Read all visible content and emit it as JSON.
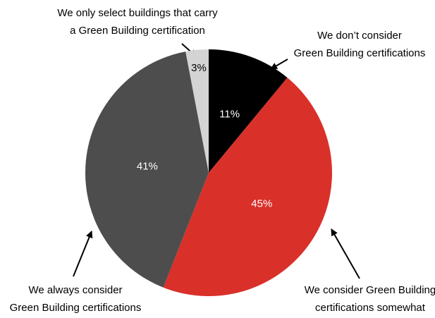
{
  "chart_data": {
    "type": "pie",
    "categories": [
      "We don’t consider\nGreen Building certifications",
      "We consider Green Building\ncertifications somewhat",
      "We always consider\nGreen Building certifications",
      "We only select buildings that carry\na Green Building certification"
    ],
    "values": [
      11,
      45,
      41,
      3
    ],
    "value_labels": [
      "11%",
      "45%",
      "41%",
      "3%"
    ],
    "colors": [
      "#000000",
      "#d9302a",
      "#4d4d4d",
      "#d4d4d4"
    ]
  }
}
